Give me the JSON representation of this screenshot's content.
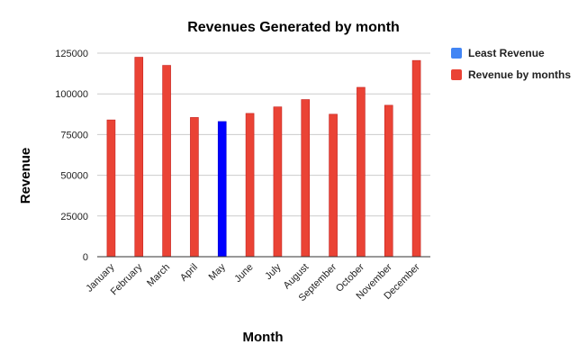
{
  "chart_data": {
    "type": "bar",
    "title": "Revenues Generated by month",
    "xlabel": "Month",
    "ylabel": "Revenue",
    "ylim": [
      0,
      125000
    ],
    "yticks": [
      0,
      25000,
      50000,
      75000,
      100000,
      125000
    ],
    "ytick_labels": [
      "0",
      "25000",
      "50000",
      "75000",
      "100000",
      "125000"
    ],
    "grid": true,
    "legend_position": "right",
    "categories": [
      "January",
      "February",
      "March",
      "April",
      "May",
      "June",
      "July",
      "August",
      "September",
      "October",
      "November",
      "December"
    ],
    "series": [
      {
        "name": "Least Revenue",
        "color": "#0000ff",
        "legend_color": "#4285f4",
        "values": [
          null,
          null,
          null,
          null,
          83000,
          null,
          null,
          null,
          null,
          null,
          null,
          null
        ]
      },
      {
        "name": "Revenue by months",
        "color": "#ea4335",
        "legend_color": "#ea4335",
        "values": [
          84000,
          122500,
          117500,
          85500,
          null,
          88000,
          92000,
          96500,
          87500,
          104000,
          93000,
          120500
        ]
      }
    ]
  }
}
